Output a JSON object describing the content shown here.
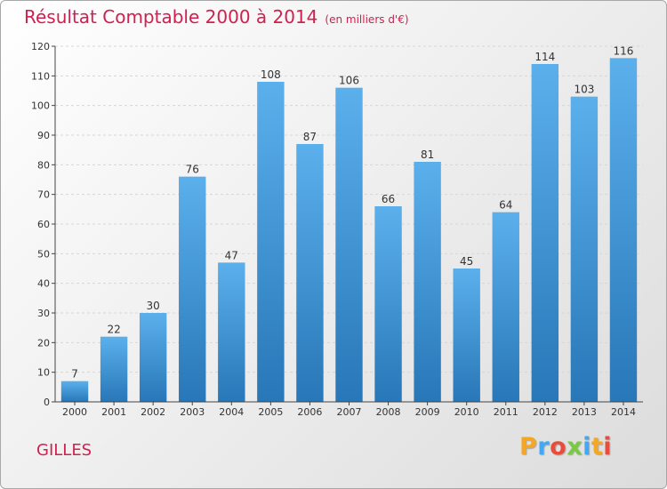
{
  "header": {
    "title": "Résultat Comptable 2000 à 2014",
    "subtitle": "(en milliers d'€)"
  },
  "footer": {
    "place": "GILLES",
    "logo": {
      "letters": [
        "P",
        "r",
        "o",
        "x",
        "i",
        "t",
        "i"
      ],
      "colors": [
        "#f5a623",
        "#3fa9f5",
        "#e84c3d",
        "#7ac943",
        "#3fa9f5",
        "#f5a623",
        "#e84c3d"
      ]
    }
  },
  "colors": {
    "title": "#d0204f",
    "bar_light": "#5bb0ec",
    "bar_dark": "#2877b8",
    "grid": "#d6d6d6",
    "axis": "#444444"
  },
  "chart_data": {
    "type": "bar",
    "title": "Résultat Comptable 2000 à 2014",
    "subtitle": "(en milliers d'€)",
    "categories": [
      "2000",
      "2001",
      "2002",
      "2003",
      "2004",
      "2005",
      "2006",
      "2007",
      "2008",
      "2009",
      "2010",
      "2011",
      "2012",
      "2013",
      "2014"
    ],
    "values": [
      7,
      22,
      30,
      76,
      47,
      108,
      87,
      106,
      66,
      81,
      45,
      64,
      114,
      103,
      116
    ],
    "ylim": [
      0,
      120
    ],
    "yticks": [
      0,
      10,
      20,
      30,
      40,
      50,
      60,
      70,
      80,
      90,
      100,
      110,
      120
    ],
    "xlabel": "",
    "ylabel": "",
    "grid": true
  }
}
